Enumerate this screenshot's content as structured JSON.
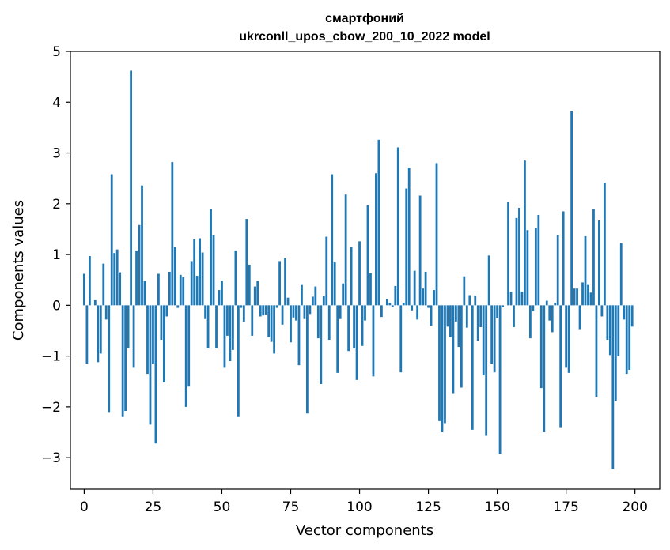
{
  "chart_data": {
    "type": "bar",
    "title": "смартфоний",
    "subtitle": "ukrconll_upos_cbow_200_10_2022 model",
    "xlabel": "Vector components",
    "ylabel": "Components values",
    "xlim": [
      -5,
      209
    ],
    "ylim": [
      -3.62,
      5.0
    ],
    "xticks": [
      0,
      25,
      50,
      75,
      100,
      125,
      150,
      175,
      200
    ],
    "yticks": [
      -3,
      -2,
      -1,
      0,
      1,
      2,
      3,
      4,
      5
    ],
    "xtick_labels": [
      "0",
      "25",
      "50",
      "75",
      "100",
      "125",
      "150",
      "175",
      "200"
    ],
    "ytick_labels": [
      "−3",
      "−2",
      "−1",
      "0",
      "1",
      "2",
      "3",
      "4",
      "5"
    ],
    "bar_color": "#1f77b4",
    "grid": false,
    "x": [
      0,
      1,
      2,
      3,
      4,
      5,
      6,
      7,
      8,
      9,
      10,
      11,
      12,
      13,
      14,
      15,
      16,
      17,
      18,
      19,
      20,
      21,
      22,
      23,
      24,
      25,
      26,
      27,
      28,
      29,
      30,
      31,
      32,
      33,
      34,
      35,
      36,
      37,
      38,
      39,
      40,
      41,
      42,
      43,
      44,
      45,
      46,
      47,
      48,
      49,
      50,
      51,
      52,
      53,
      54,
      55,
      56,
      57,
      58,
      59,
      60,
      61,
      62,
      63,
      64,
      65,
      66,
      67,
      68,
      69,
      70,
      71,
      72,
      73,
      74,
      75,
      76,
      77,
      78,
      79,
      80,
      81,
      82,
      83,
      84,
      85,
      86,
      87,
      88,
      89,
      90,
      91,
      92,
      93,
      94,
      95,
      96,
      97,
      98,
      99,
      100,
      101,
      102,
      103,
      104,
      105,
      106,
      107,
      108,
      109,
      110,
      111,
      112,
      113,
      114,
      115,
      116,
      117,
      118,
      119,
      120,
      121,
      122,
      123,
      124,
      125,
      126,
      127,
      128,
      129,
      130,
      131,
      132,
      133,
      134,
      135,
      136,
      137,
      138,
      139,
      140,
      141,
      142,
      143,
      144,
      145,
      146,
      147,
      148,
      149,
      150,
      151,
      152,
      153,
      154,
      155,
      156,
      157,
      158,
      159,
      160,
      161,
      162,
      163,
      164,
      165,
      166,
      167,
      168,
      169,
      170,
      171,
      172,
      173,
      174,
      175,
      176,
      177,
      178,
      179,
      180,
      181,
      182,
      183,
      184,
      185,
      186,
      187,
      188,
      189,
      190,
      191,
      192,
      193,
      194,
      195,
      196,
      197,
      198,
      199
    ],
    "values": [
      0.62,
      -1.15,
      0.97,
      0.0,
      0.1,
      -1.12,
      -0.95,
      0.82,
      -0.28,
      -2.1,
      2.58,
      1.03,
      1.1,
      0.65,
      -2.2,
      -2.08,
      -0.85,
      4.62,
      -1.23,
      1.08,
      1.58,
      2.36,
      0.48,
      -1.35,
      -2.35,
      -1.15,
      -2.72,
      0.62,
      -0.68,
      -1.52,
      -0.22,
      0.66,
      2.82,
      1.15,
      -0.05,
      0.6,
      0.55,
      -2.0,
      -1.6,
      0.87,
      1.3,
      0.58,
      1.32,
      1.04,
      -0.27,
      -0.85,
      1.9,
      1.38,
      -0.85,
      0.3,
      0.48,
      -1.23,
      -0.6,
      -1.1,
      -0.88,
      1.08,
      -2.2,
      -0.05,
      -0.33,
      1.7,
      0.8,
      -0.6,
      0.37,
      0.48,
      -0.22,
      -0.2,
      -0.18,
      -0.63,
      -0.72,
      -0.95,
      -0.05,
      0.87,
      -0.38,
      0.93,
      0.15,
      -0.73,
      -0.24,
      -0.3,
      -1.18,
      0.4,
      -0.27,
      -2.13,
      -0.17,
      0.17,
      0.37,
      -0.65,
      -1.55,
      0.18,
      1.35,
      -0.68,
      2.58,
      0.85,
      -1.33,
      -0.27,
      0.43,
      2.18,
      -0.9,
      1.15,
      -0.85,
      -1.47,
      1.26,
      -0.8,
      -0.3,
      1.97,
      0.63,
      -1.4,
      2.6,
      3.26,
      -0.23,
      0.0,
      0.12,
      0.05,
      -0.03,
      0.38,
      3.11,
      -1.32,
      0.05,
      2.3,
      2.71,
      -0.1,
      0.68,
      -0.28,
      2.16,
      0.33,
      0.66,
      -0.05,
      -0.4,
      0.3,
      2.8,
      -2.28,
      -2.5,
      -2.32,
      -0.42,
      -0.63,
      -1.73,
      -0.32,
      -0.82,
      -1.62,
      0.57,
      -0.44,
      0.2,
      -2.45,
      0.19,
      -0.7,
      -0.43,
      -1.38,
      -2.57,
      0.98,
      -1.15,
      -1.32,
      -0.25,
      -2.93,
      -0.04,
      0.0,
      2.03,
      0.27,
      -0.43,
      1.72,
      1.92,
      0.27,
      2.85,
      1.48,
      -0.65,
      -0.12,
      1.53,
      1.78,
      -1.63,
      -2.5,
      0.09,
      -0.3,
      -0.53,
      0.05,
      1.38,
      -2.4,
      1.85,
      -1.23,
      -1.33,
      3.82,
      0.33,
      0.33,
      -0.47,
      0.45,
      1.36,
      0.4,
      0.25,
      1.9,
      -1.8,
      1.67,
      -0.22,
      2.41,
      -0.68,
      -0.98,
      -3.23,
      -1.88,
      -1.0,
      1.22,
      -0.28,
      -1.35,
      -1.27,
      -0.42
    ]
  }
}
